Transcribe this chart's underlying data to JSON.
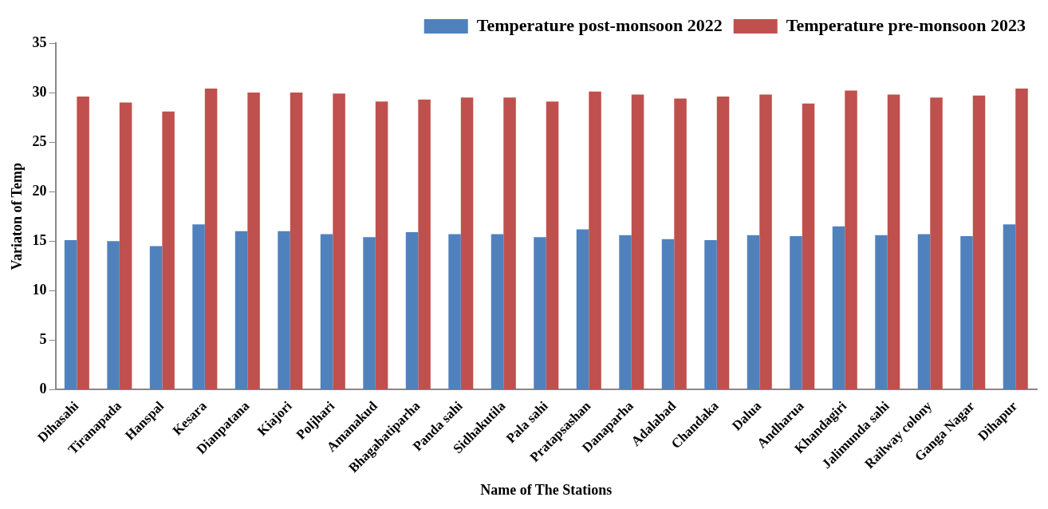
{
  "chart_data": {
    "type": "bar",
    "xlabel": "Name of The Stations",
    "ylabel": "Variaton of Temp",
    "categories": [
      "Dihasahi",
      "Tiranapada",
      "Hanspal",
      "Kesara",
      "Dianpatana",
      "Kiajori",
      "Poljhari",
      "Amanakud",
      "Bhagabatiparha",
      "Panda sahi",
      "Sidhakutila",
      "Pala sahi",
      "Pratapsashan",
      "Danaparha",
      "Adalabad",
      "Chandaka",
      "Dalua",
      "Andharua",
      "Khandagiri",
      "Jalimunda sahi",
      "Railway colony",
      "Ganga Nagar",
      "Dihapur"
    ],
    "series": [
      {
        "name": "Temperature post-monsoon 2022",
        "color": "#4f81bd",
        "values": [
          15.1,
          15.0,
          14.5,
          16.7,
          16.0,
          16.0,
          15.7,
          15.4,
          15.9,
          15.7,
          15.7,
          15.4,
          16.2,
          15.6,
          15.2,
          15.1,
          15.6,
          15.5,
          16.5,
          15.6,
          15.7,
          15.5,
          16.7
        ]
      },
      {
        "name": "Temperature pre-monsoon 2023",
        "color": "#c0504d",
        "values": [
          29.6,
          29.0,
          28.1,
          30.4,
          30.0,
          30.0,
          29.9,
          29.1,
          29.3,
          29.5,
          29.5,
          29.1,
          30.1,
          29.8,
          29.4,
          29.6,
          29.8,
          28.9,
          30.2,
          29.8,
          29.5,
          29.7,
          30.4
        ]
      }
    ],
    "ylim": [
      0,
      35
    ],
    "yticks": [
      0,
      5,
      10,
      15,
      20,
      25,
      30,
      35
    ],
    "grid": false,
    "legend": "top right"
  }
}
